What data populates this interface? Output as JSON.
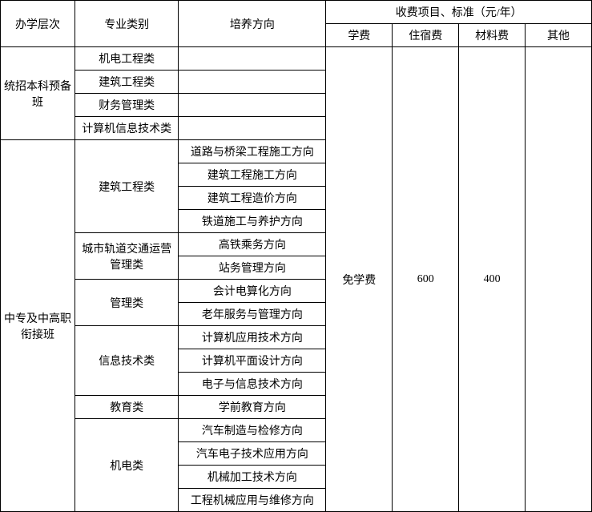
{
  "header": {
    "level": "办学层次",
    "major": "专业类别",
    "direction": "培养方向",
    "fee_group": "收费项目、标准（元/年）",
    "tuition": "学费",
    "dorm": "住宿费",
    "material": "材料费",
    "other": "其他"
  },
  "levels": {
    "a": "统招本科预备班",
    "b": "中专及中高职衔接班"
  },
  "majors": {
    "a1": "机电工程类",
    "a2": "建筑工程类",
    "a3": "财务管理类",
    "a4": "计算机信息技术类",
    "b1": "建筑工程类",
    "b2": "城市轨道交通运营管理类",
    "b3": "管理类",
    "b4": "信息技术类",
    "b5": "教育类",
    "b6": "机电类"
  },
  "dirs": {
    "b1_1": "道路与桥梁工程施工方向",
    "b1_2": "建筑工程施工方向",
    "b1_3": "建筑工程造价方向",
    "b1_4": "铁道施工与养护方向",
    "b2_1": "高铁乘务方向",
    "b2_2": "站务管理方向",
    "b3_1": "会计电算化方向",
    "b3_2": "老年服务与管理方向",
    "b4_1": "计算机应用技术方向",
    "b4_2": "计算机平面设计方向",
    "b4_3": "电子与信息技术方向",
    "b5_1": "学前教育方向",
    "b6_1": "汽车制造与检修方向",
    "b6_2": "汽车电子技术应用方向",
    "b6_3": "机械加工技术方向",
    "b6_4": "工程机械应用与维修方向"
  },
  "fees": {
    "tuition": "免学费",
    "dorm": "600",
    "material": "400",
    "other": ""
  },
  "style": {
    "border_color": "#000000",
    "background_color": "#ffffff",
    "text_color": "#000000",
    "font_size_pt": 10.5,
    "font_family": "SimSun"
  }
}
